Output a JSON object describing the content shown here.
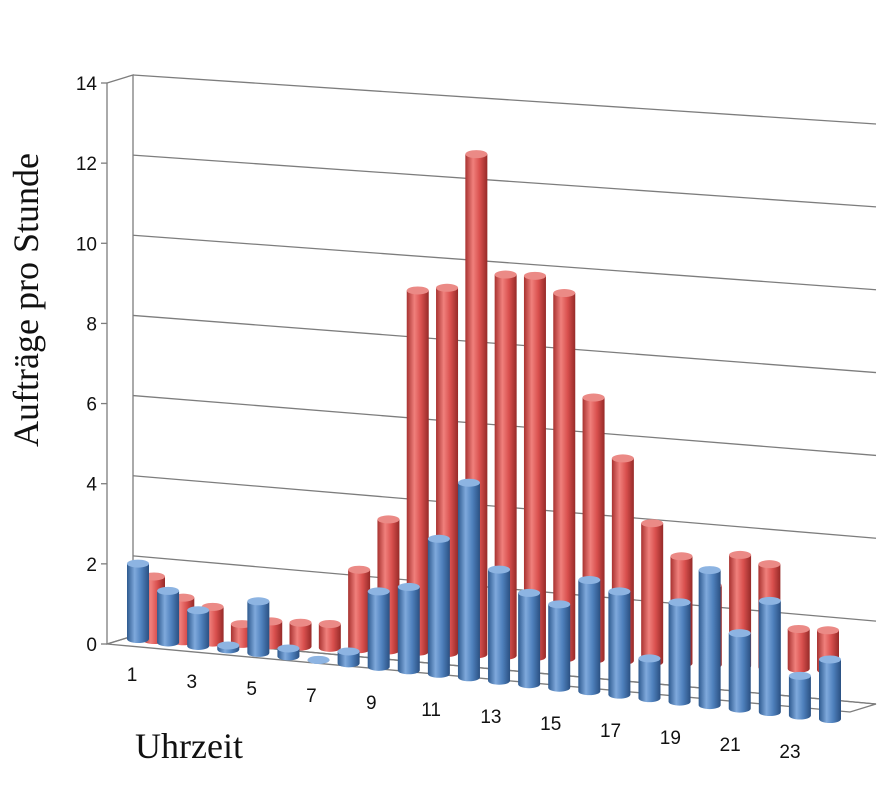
{
  "chart_data": {
    "type": "bar",
    "style": "3d-cylinder",
    "xlabel": "Uhrzeit",
    "ylabel": "Aufträge pro Stunde",
    "ylim": [
      0,
      14
    ],
    "yticks": [
      0,
      2,
      4,
      6,
      8,
      10,
      12,
      14
    ],
    "categories": [
      1,
      2,
      3,
      4,
      5,
      6,
      7,
      8,
      9,
      10,
      11,
      12,
      13,
      14,
      15,
      16,
      17,
      18,
      19,
      20,
      21,
      22,
      23,
      24
    ],
    "xtick_labels": [
      "1",
      "3",
      "5",
      "7",
      "9",
      "11",
      "13",
      "15",
      "17",
      "19",
      "21",
      "23"
    ],
    "grid": true,
    "series": [
      {
        "color": "#d9504e",
        "values": [
          1.6,
          1.1,
          0.9,
          0.5,
          0.6,
          0.6,
          0.6,
          2.0,
          3.3,
          9.1,
          9.2,
          12.6,
          9.6,
          9.6,
          9.2,
          6.6,
          5.1,
          3.5,
          2.7,
          2.0,
          2.8,
          2.6,
          1.0,
          1.0
        ]
      },
      {
        "color": "#4f81bd",
        "values": [
          1.9,
          1.3,
          0.9,
          0.1,
          1.3,
          0.2,
          0.0,
          0.3,
          1.9,
          2.1,
          3.4,
          4.9,
          2.8,
          2.3,
          2.1,
          2.8,
          2.6,
          1.0,
          2.5,
          3.4,
          1.9,
          2.8,
          1.0,
          1.5
        ]
      }
    ]
  }
}
